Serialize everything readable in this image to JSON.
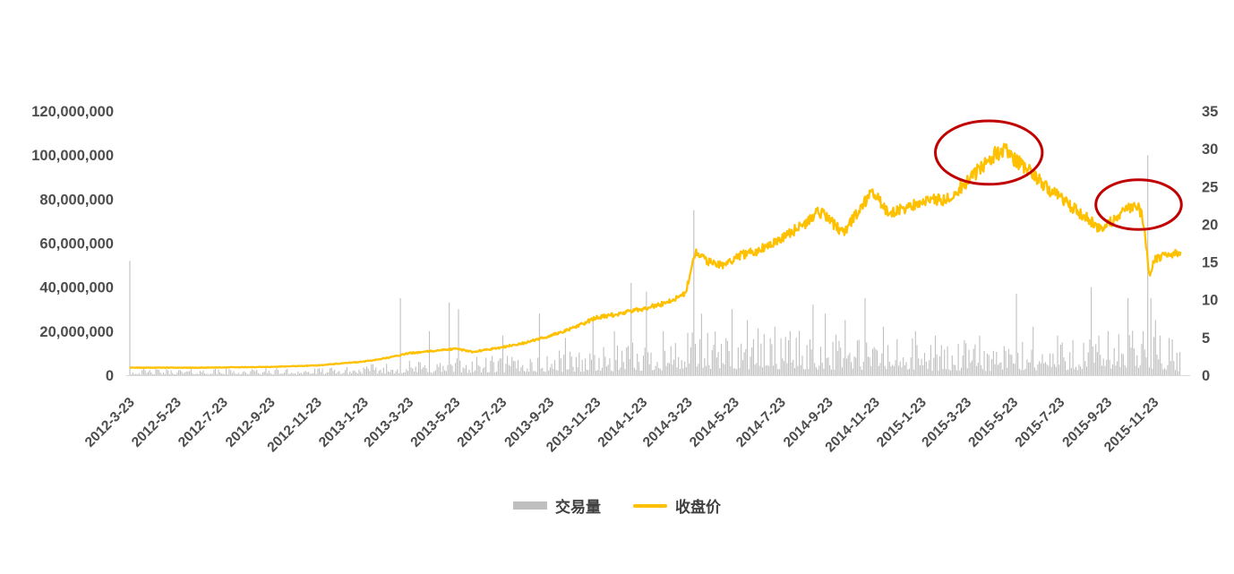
{
  "page": {
    "background": "#ffffff"
  },
  "chart_data": {
    "type": "combo",
    "title": "",
    "x_domain": [
      "2012-03-23",
      "2015-12-31"
    ],
    "x_data_end": "2015-12-28",
    "x_ticks": [
      "2012-3-23",
      "2012-5-23",
      "2012-7-23",
      "2012-9-23",
      "2012-11-23",
      "2013-1-23",
      "2013-3-23",
      "2013-5-23",
      "2013-7-23",
      "2013-9-23",
      "2013-11-23",
      "2014-1-23",
      "2014-3-23",
      "2014-5-23",
      "2014-7-23",
      "2014-9-23",
      "2014-11-23",
      "2015-1-23",
      "2015-3-23",
      "2015-5-23",
      "2015-7-23",
      "2015-9-23",
      "2015-11-23"
    ],
    "left_axis": {
      "min": 0,
      "max": 120000000,
      "tick_step": 20000000,
      "tick_labels": [
        "0",
        "20,000,000",
        "40,000,000",
        "60,000,000",
        "80,000,000",
        "100,000,000",
        "120,000,000"
      ]
    },
    "right_axis": {
      "min": 0,
      "max": 35,
      "tick_step": 5,
      "tick_labels": [
        "0",
        "5",
        "10",
        "15",
        "20",
        "25",
        "30",
        "35"
      ]
    },
    "grid": "off",
    "legend_position": "bottom-center",
    "series": [
      {
        "name": "交易量",
        "type": "bar",
        "axis": "left",
        "color": "#BFBFBF",
        "baseline_anchors_millions": [
          [
            "2012-03-23",
            1.5
          ],
          [
            "2012-12-23",
            1.8
          ],
          [
            "2013-03-23",
            3.5
          ],
          [
            "2013-06-23",
            4.5
          ],
          [
            "2013-09-23",
            6
          ],
          [
            "2013-12-23",
            7
          ],
          [
            "2014-03-23",
            10
          ],
          [
            "2014-06-23",
            11
          ],
          [
            "2014-09-23",
            10
          ],
          [
            "2014-12-23",
            9
          ],
          [
            "2015-03-23",
            7.5
          ],
          [
            "2015-06-23",
            8
          ],
          [
            "2015-09-23",
            10
          ],
          [
            "2015-11-23",
            12
          ],
          [
            "2015-12-28",
            7
          ]
        ],
        "spikes_millions": [
          [
            "2012-03-23",
            52
          ],
          [
            "2013-03-12",
            35
          ],
          [
            "2013-04-20",
            20
          ],
          [
            "2013-05-15",
            33
          ],
          [
            "2013-05-28",
            30
          ],
          [
            "2013-07-25",
            18
          ],
          [
            "2013-09-10",
            28
          ],
          [
            "2013-10-15",
            17
          ],
          [
            "2013-11-20",
            25
          ],
          [
            "2013-12-18",
            20
          ],
          [
            "2014-01-08",
            42
          ],
          [
            "2014-01-28",
            38
          ],
          [
            "2014-02-20",
            20
          ],
          [
            "2014-03-31",
            75
          ],
          [
            "2014-04-10",
            28
          ],
          [
            "2014-05-20",
            30
          ],
          [
            "2014-06-10",
            25
          ],
          [
            "2014-07-15",
            22
          ],
          [
            "2014-08-05",
            20
          ],
          [
            "2014-09-03",
            32
          ],
          [
            "2014-09-20",
            28
          ],
          [
            "2014-10-15",
            25
          ],
          [
            "2014-11-10",
            35
          ],
          [
            "2014-12-05",
            22
          ],
          [
            "2015-01-15",
            20
          ],
          [
            "2015-02-10",
            18
          ],
          [
            "2015-03-20",
            16
          ],
          [
            "2015-04-10",
            18
          ],
          [
            "2015-05-28",
            37
          ],
          [
            "2015-06-18",
            22
          ],
          [
            "2015-07-20",
            18
          ],
          [
            "2015-08-10",
            16
          ],
          [
            "2015-09-02",
            40
          ],
          [
            "2015-09-25",
            20
          ],
          [
            "2015-10-20",
            35
          ],
          [
            "2015-11-16",
            100
          ],
          [
            "2015-11-19",
            35
          ],
          [
            "2015-11-25",
            25
          ],
          [
            "2015-12-02",
            18
          ]
        ]
      },
      {
        "name": "收盘价",
        "type": "line",
        "axis": "right",
        "color": "#FFC000",
        "anchors": [
          [
            "2012-03-23",
            1.0
          ],
          [
            "2012-06-23",
            1.0
          ],
          [
            "2012-09-23",
            1.1
          ],
          [
            "2012-11-23",
            1.3
          ],
          [
            "2013-01-23",
            1.8
          ],
          [
            "2013-02-23",
            2.3
          ],
          [
            "2013-03-23",
            2.9
          ],
          [
            "2013-04-23",
            3.2
          ],
          [
            "2013-05-23",
            3.5
          ],
          [
            "2013-06-15",
            3.1
          ],
          [
            "2013-07-23",
            3.7
          ],
          [
            "2013-08-23",
            4.3
          ],
          [
            "2013-09-23",
            5.2
          ],
          [
            "2013-10-23",
            6.2
          ],
          [
            "2013-11-23",
            7.6
          ],
          [
            "2013-12-23",
            8.1
          ],
          [
            "2014-01-23",
            8.8
          ],
          [
            "2014-02-23",
            9.6
          ],
          [
            "2014-03-20",
            10.8
          ],
          [
            "2014-04-02",
            16.3
          ],
          [
            "2014-04-18",
            15.0
          ],
          [
            "2014-05-10",
            14.6
          ],
          [
            "2014-05-28",
            15.8
          ],
          [
            "2014-06-23",
            16.5
          ],
          [
            "2014-07-23",
            18.2
          ],
          [
            "2014-08-23",
            20.0
          ],
          [
            "2014-09-10",
            21.8
          ],
          [
            "2014-09-28",
            20.2
          ],
          [
            "2014-10-12",
            18.8
          ],
          [
            "2014-11-05",
            22.2
          ],
          [
            "2014-11-20",
            24.3
          ],
          [
            "2014-12-10",
            21.5
          ],
          [
            "2014-12-28",
            22.0
          ],
          [
            "2015-01-23",
            23.0
          ],
          [
            "2015-02-23",
            23.3
          ],
          [
            "2015-03-23",
            25.5
          ],
          [
            "2015-04-15",
            28.0
          ],
          [
            "2015-04-30",
            29.4
          ],
          [
            "2015-05-12",
            29.8
          ],
          [
            "2015-05-26",
            28.4
          ],
          [
            "2015-06-15",
            27.0
          ],
          [
            "2015-07-10",
            24.5
          ],
          [
            "2015-08-05",
            22.5
          ],
          [
            "2015-08-25",
            21.0
          ],
          [
            "2015-09-15",
            19.2
          ],
          [
            "2015-09-30",
            20.5
          ],
          [
            "2015-10-20",
            22.0
          ],
          [
            "2015-11-02",
            22.6
          ],
          [
            "2015-11-10",
            20.0
          ],
          [
            "2015-11-17",
            13.2
          ],
          [
            "2015-11-25",
            15.5
          ],
          [
            "2015-12-28",
            16.2
          ]
        ]
      }
    ],
    "annotations": [
      {
        "type": "ellipse",
        "color": "#C00000",
        "center_date": "2015-04-21",
        "center_price": 29.5,
        "rx_days": 70,
        "ry_price": 4.2
      },
      {
        "type": "ellipse",
        "color": "#C00000",
        "center_date": "2015-11-03",
        "center_price": 22.6,
        "rx_days": 56,
        "ry_price": 3.3
      }
    ],
    "legend": [
      {
        "label": "交易量",
        "swatch": "bar",
        "color": "#BFBFBF"
      },
      {
        "label": "收盘价",
        "swatch": "line",
        "color": "#FFC000"
      }
    ],
    "axis_text_color": "#4d4d4d"
  }
}
